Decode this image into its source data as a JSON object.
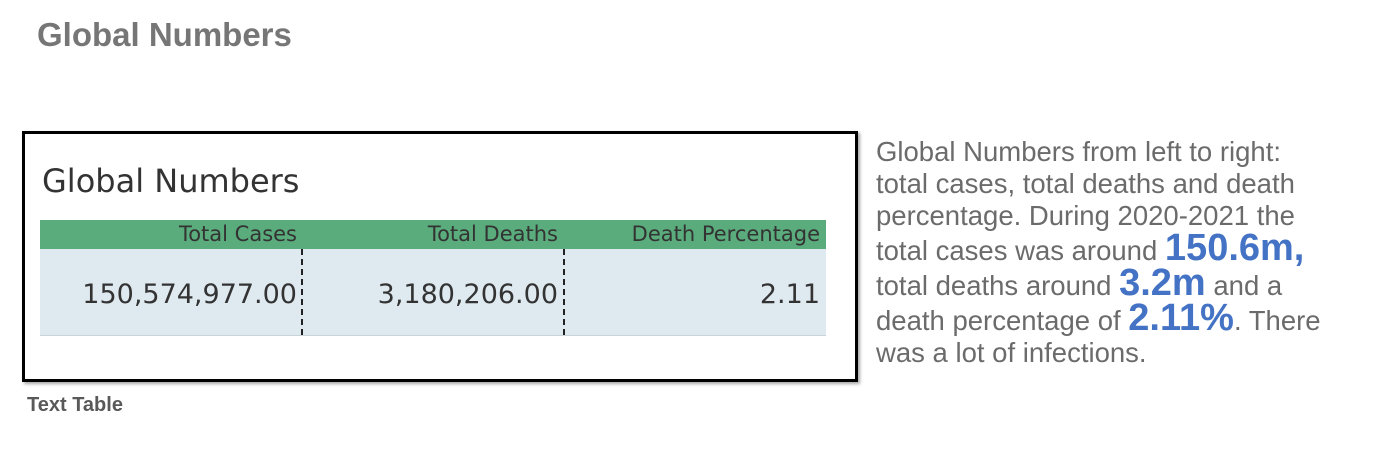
{
  "page_title": "Global Numbers",
  "table": {
    "title": "Global Numbers",
    "headers": [
      "Total Cases",
      "Total Deaths",
      "Death Percentage"
    ],
    "values": [
      "150,574,977.00",
      "3,180,206.00",
      "2.11"
    ],
    "header_color": "#5aac7c",
    "row_color": "#dfeaf0"
  },
  "caption": "Text Table",
  "description": {
    "line1": "Global Numbers from left to right:",
    "line2": "total cases, total deaths and death",
    "line3": "percentage. During 2020-2021 the",
    "line4_pre": "total cases was around ",
    "total_cases_highlight": "150.6m,",
    "line5_pre": "total deaths around ",
    "total_deaths_highlight": "3.2m",
    "line5_post": " and a",
    "line6_pre": "death percentage of ",
    "death_pct_highlight": "2.11%",
    "line6_post": ". There",
    "line7": "was a lot of infections.",
    "highlight_color": "#4472c4"
  }
}
